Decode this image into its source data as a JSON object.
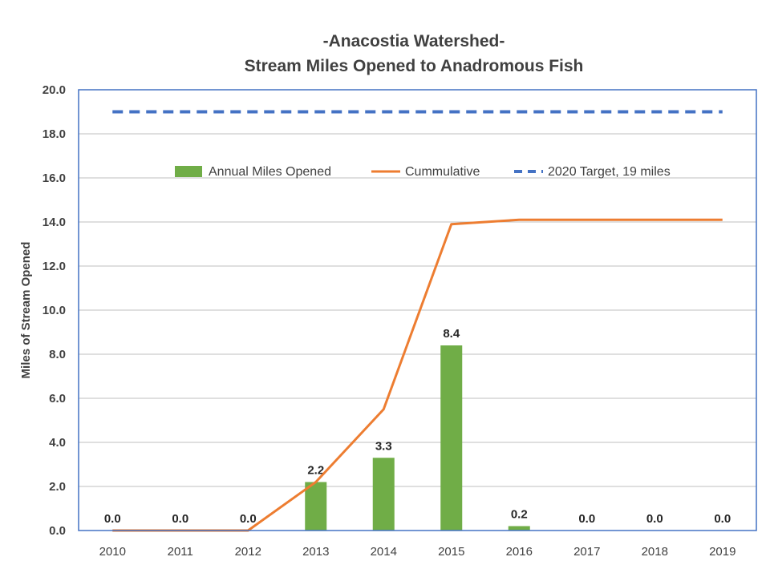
{
  "chart_data": {
    "type": "bar",
    "title_lines": [
      "-Anacostia Watershed-",
      "Stream Miles Opened to Anadromous Fish"
    ],
    "xlabel": "",
    "ylabel": "Miles of Stream Opened",
    "categories": [
      "2010",
      "2011",
      "2012",
      "2013",
      "2014",
      "2015",
      "2016",
      "2017",
      "2018",
      "2019"
    ],
    "ylim": [
      0,
      20
    ],
    "yticks": [
      "0.0",
      "2.0",
      "4.0",
      "6.0",
      "8.0",
      "10.0",
      "12.0",
      "14.0",
      "16.0",
      "18.0",
      "20.0"
    ],
    "grid": true,
    "legend_position": "inside-top",
    "series": [
      {
        "name": "Annual Miles Opened",
        "type": "bar",
        "color": "#70AD47",
        "values": [
          0.0,
          0.0,
          0.0,
          2.2,
          3.3,
          8.4,
          0.2,
          0.0,
          0.0,
          0.0
        ],
        "labels": [
          "0.0",
          "0.0",
          "0.0",
          "2.2",
          "3.3",
          "8.4",
          "0.2",
          "0.0",
          "0.0",
          "0.0"
        ]
      },
      {
        "name": "Cummulative",
        "type": "line",
        "color": "#ED7D31",
        "values": [
          0.0,
          0.0,
          0.0,
          2.2,
          5.5,
          13.9,
          14.1,
          14.1,
          14.1,
          14.1
        ]
      },
      {
        "name": "2020 Target, 19 miles",
        "type": "dashed-line",
        "color": "#4472C4",
        "values": [
          19,
          19,
          19,
          19,
          19,
          19,
          19,
          19,
          19,
          19
        ]
      }
    ]
  }
}
